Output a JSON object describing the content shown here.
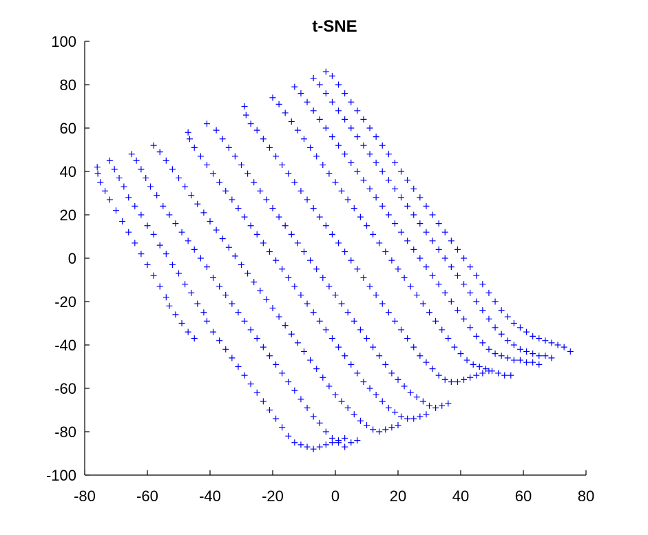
{
  "chart_data": {
    "type": "scatter",
    "title": "t-SNE",
    "xlabel": "",
    "ylabel": "",
    "xlim": [
      -80,
      80
    ],
    "ylim": [
      -100,
      100
    ],
    "xticks": [
      -80,
      -60,
      -40,
      -20,
      0,
      20,
      40,
      60,
      80
    ],
    "yticks": [
      -100,
      -80,
      -60,
      -40,
      -20,
      0,
      20,
      40,
      60,
      80,
      100
    ],
    "xtick_labels": [
      "-80",
      "-60",
      "-40",
      "-20",
      "0",
      "20",
      "40",
      "60",
      "80"
    ],
    "ytick_labels": [
      "-100",
      "-80",
      "-60",
      "-40",
      "-20",
      "0",
      "20",
      "40",
      "60",
      "80",
      "100"
    ],
    "marker": "+",
    "color": "#0000ff",
    "grid": false,
    "legend": false,
    "series": [
      {
        "x": [
          -76,
          -75.8,
          -75,
          -73.5,
          -72,
          -70,
          -68,
          -66,
          -64,
          -62,
          -60,
          -58,
          -56,
          -54,
          -53,
          -51,
          -49,
          -47,
          -45,
          -72,
          -70.5,
          -69,
          -67.5,
          -66,
          -64,
          -62,
          -60,
          -58,
          -56,
          -54,
          -52,
          -50,
          -48,
          -46,
          -44,
          -42,
          -41,
          -39,
          -37,
          -35,
          -33,
          -31,
          -29,
          -27,
          -25,
          -23,
          -21,
          -19,
          -17,
          -15,
          -13,
          -11,
          -9,
          -7,
          -5,
          -3,
          -1,
          1,
          3,
          -65,
          -63.5,
          -62,
          -60.5,
          -59,
          -57,
          -55,
          -53,
          -51,
          -49,
          -47,
          -45,
          -43,
          -41,
          -39,
          -37,
          -35,
          -33,
          -31,
          -29,
          -27,
          -25,
          -23,
          -21,
          -19,
          -17,
          -15,
          -13,
          -11,
          -9,
          -7,
          -5,
          -3,
          -1,
          1,
          3,
          5,
          7,
          -58,
          -56,
          -54,
          -52,
          -50,
          -48,
          -46,
          -44,
          -42,
          -40,
          -38,
          -36,
          -34,
          -32,
          -30,
          -28,
          -26,
          -24,
          -22,
          -20,
          -18,
          -16,
          -14,
          -12,
          -10,
          -8,
          -6,
          -4,
          -2,
          0,
          2,
          4,
          6,
          8,
          10,
          12,
          14,
          16,
          18,
          20,
          -47,
          -46.5,
          -45,
          -43,
          -41,
          -39,
          -37,
          -35,
          -33,
          -31,
          -29,
          -27,
          -25,
          -23,
          -21,
          -19,
          -17,
          -15,
          -13,
          -11,
          -9,
          -7,
          -5,
          -3,
          -1,
          1,
          3,
          5,
          7,
          9,
          11,
          13,
          15,
          17,
          19,
          21,
          23,
          25,
          27,
          29,
          -41,
          -38,
          -36,
          -34,
          -32,
          -30,
          -28,
          -26,
          -24,
          -22,
          -20,
          -18,
          -16,
          -14,
          -12,
          -10,
          -8,
          -6,
          -4,
          -2,
          0,
          2,
          4,
          6,
          8,
          10,
          12,
          14,
          16,
          18,
          20,
          22,
          24,
          26,
          28,
          30,
          32,
          34,
          36,
          -29,
          -28.5,
          -27,
          -25,
          -23,
          -21,
          -19,
          -17,
          -15,
          -13,
          -11,
          -9,
          -7,
          -5,
          -3,
          -1,
          1,
          3,
          5,
          7,
          9,
          11,
          13,
          15,
          17,
          19,
          21,
          23,
          25,
          27,
          29,
          31,
          33,
          35,
          37,
          39,
          41,
          43,
          45,
          47,
          49,
          -20,
          -18,
          -16,
          -14,
          -12,
          -10,
          -8,
          -6,
          -4,
          -2,
          0,
          2,
          4,
          6,
          8,
          10,
          12,
          14,
          16,
          18,
          20,
          22,
          24,
          26,
          28,
          30,
          32,
          34,
          36,
          38,
          40,
          42,
          44,
          46,
          48,
          50,
          52,
          54,
          56,
          -13,
          -11,
          -9,
          -7,
          -5,
          -3,
          -1,
          1,
          3,
          5,
          7,
          9,
          11,
          13,
          15,
          17,
          19,
          21,
          23,
          25,
          27,
          29,
          31,
          33,
          35,
          37,
          39,
          41,
          43,
          45,
          47,
          49,
          51,
          53,
          55,
          57,
          59,
          61,
          63,
          65,
          -7,
          -5,
          -3,
          -1,
          1,
          3,
          5,
          7,
          9,
          11,
          13,
          15,
          17,
          19,
          21,
          23,
          25,
          27,
          29,
          31,
          33,
          35,
          37,
          39,
          41,
          43,
          45,
          47,
          49,
          51,
          53,
          55,
          57,
          59,
          61,
          63,
          65,
          67,
          69,
          -3,
          -1,
          1,
          3,
          5,
          7,
          9,
          11,
          13,
          15,
          17,
          19,
          21,
          23,
          25,
          27,
          29,
          31,
          33,
          35,
          37,
          39,
          41,
          43,
          45,
          47,
          49,
          51,
          53,
          55,
          57,
          59,
          61,
          63,
          65,
          67,
          69,
          71,
          73,
          75
        ],
        "y": [
          42,
          39,
          35,
          31,
          27,
          22,
          17,
          12,
          7,
          2,
          -3,
          -8,
          -13,
          -18,
          -22,
          -26,
          -30,
          -34,
          -37,
          45,
          41,
          37,
          33,
          28,
          24,
          20,
          15,
          11,
          6,
          2,
          -3,
          -7,
          -12,
          -16,
          -21,
          -25,
          -29,
          -34,
          -38,
          -42,
          -46,
          -50,
          -54,
          -58,
          -62,
          -66,
          -70,
          -74,
          -78,
          -82,
          -85,
          -86,
          -87,
          -88,
          -87,
          -86,
          -85,
          -84,
          -83,
          48,
          45,
          41,
          37,
          33,
          29,
          24,
          20,
          16,
          12,
          8,
          4,
          0,
          -4,
          -9,
          -13,
          -17,
          -21,
          -25,
          -29,
          -33,
          -37,
          -41,
          -45,
          -49,
          -53,
          -57,
          -61,
          -65,
          -69,
          -73,
          -76,
          -80,
          -83,
          -85,
          -87,
          -85,
          -84,
          52,
          49,
          45,
          41,
          37,
          33,
          29,
          25,
          21,
          17,
          13,
          9,
          5,
          1,
          -3,
          -7,
          -11,
          -15,
          -19,
          -23,
          -27,
          -31,
          -35,
          -39,
          -43,
          -47,
          -51,
          -55,
          -59,
          -63,
          -66,
          -69,
          -72,
          -75,
          -77,
          -79,
          -80,
          -79,
          -78,
          -77,
          58,
          55,
          51,
          47,
          43,
          39,
          35,
          31,
          27,
          23,
          19,
          15,
          11,
          7,
          3,
          -1,
          -5,
          -9,
          -13,
          -17,
          -21,
          -25,
          -29,
          -33,
          -37,
          -41,
          -45,
          -49,
          -53,
          -57,
          -60,
          -63,
          -66,
          -69,
          -71,
          -73,
          -74,
          -74,
          -73,
          -72,
          62,
          59,
          55,
          51,
          47,
          43,
          39,
          35,
          31,
          27,
          23,
          19,
          15,
          11,
          7,
          3,
          -1,
          -5,
          -9,
          -13,
          -17,
          -21,
          -25,
          -29,
          -33,
          -37,
          -41,
          -45,
          -49,
          -53,
          -56,
          -59,
          -62,
          -64,
          -66,
          -68,
          -69,
          -68,
          -67,
          70,
          66,
          62,
          59,
          55,
          51,
          47,
          43,
          39,
          35,
          31,
          27,
          23,
          19,
          15,
          11,
          7,
          3,
          -1,
          -5,
          -9,
          -13,
          -17,
          -21,
          -25,
          -29,
          -33,
          -37,
          -41,
          -45,
          -48,
          -51,
          -54,
          -56,
          -57,
          -57,
          -56,
          -55,
          -54,
          -53,
          -52,
          74,
          71,
          67,
          63,
          59,
          55,
          51,
          47,
          43,
          39,
          35,
          31,
          27,
          23,
          19,
          15,
          11,
          7,
          3,
          -1,
          -5,
          -9,
          -13,
          -17,
          -21,
          -25,
          -29,
          -33,
          -37,
          -41,
          -44,
          -47,
          -49,
          -50,
          -51,
          -52,
          -53,
          -54,
          -54,
          79,
          76,
          72,
          68,
          64,
          60,
          56,
          52,
          48,
          44,
          40,
          36,
          32,
          28,
          24,
          20,
          16,
          12,
          8,
          4,
          0,
          -4,
          -8,
          -12,
          -16,
          -20,
          -24,
          -28,
          -32,
          -36,
          -39,
          -42,
          -44,
          -45,
          -46,
          -47,
          -47,
          -48,
          -48,
          -49,
          83,
          80,
          76,
          72,
          68,
          64,
          60,
          56,
          52,
          48,
          44,
          40,
          36,
          32,
          28,
          24,
          20,
          16,
          12,
          8,
          4,
          0,
          -4,
          -8,
          -12,
          -16,
          -20,
          -24,
          -28,
          -32,
          -35,
          -38,
          -40,
          -42,
          -43,
          -44,
          -45,
          -45,
          -46,
          86,
          84,
          80,
          76,
          72,
          68,
          64,
          60,
          56,
          52,
          48,
          44,
          40,
          36,
          32,
          28,
          24,
          20,
          16,
          12,
          8,
          4,
          0,
          -4,
          -8,
          -12,
          -16,
          -20,
          -24,
          -27,
          -30,
          -32,
          -34,
          -36,
          -37,
          -38,
          -39,
          -40,
          -41,
          -43
        ]
      }
    ]
  }
}
